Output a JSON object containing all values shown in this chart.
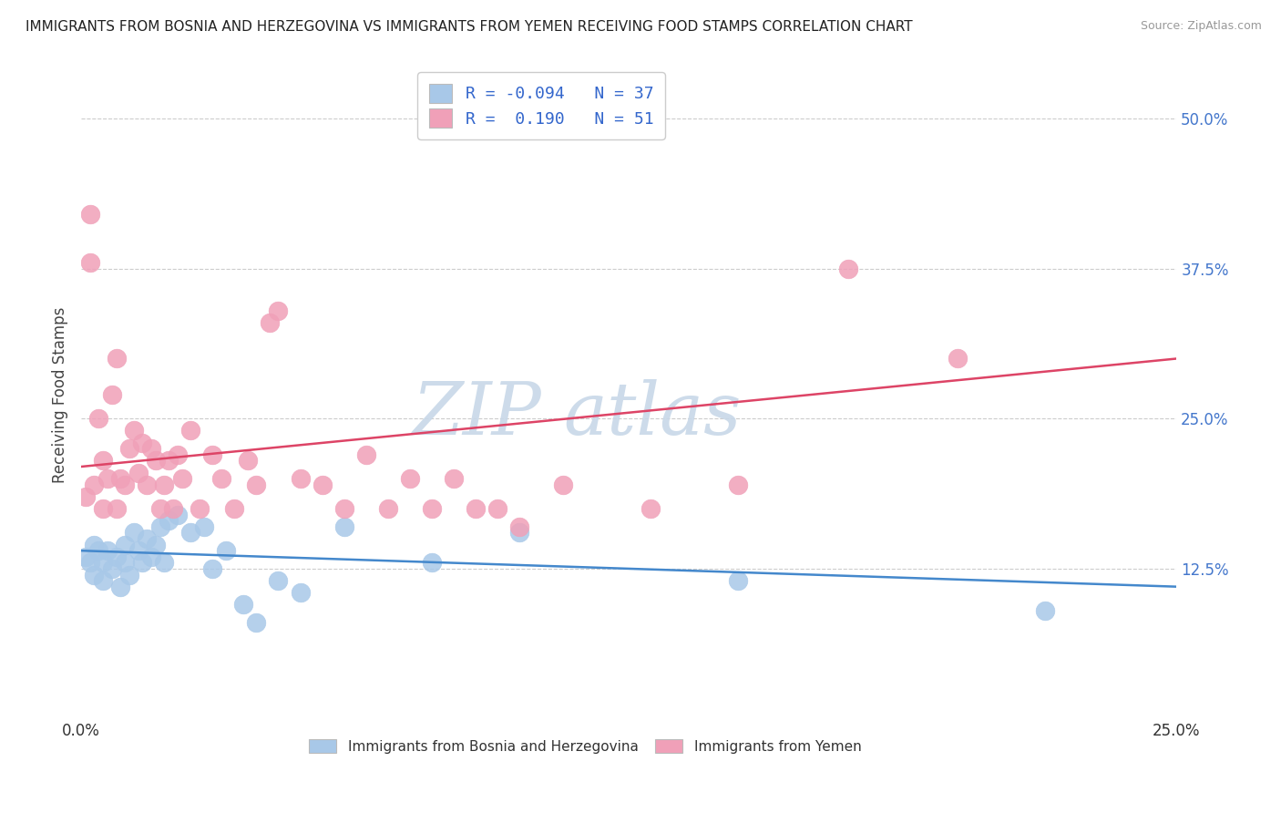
{
  "title": "IMMIGRANTS FROM BOSNIA AND HERZEGOVINA VS IMMIGRANTS FROM YEMEN RECEIVING FOOD STAMPS CORRELATION CHART",
  "source": "Source: ZipAtlas.com",
  "ylabel": "Receiving Food Stamps",
  "xlim": [
    0.0,
    0.25
  ],
  "ylim": [
    0.0,
    0.54
  ],
  "grid_color": "#cccccc",
  "background_color": "#ffffff",
  "blue_color": "#a8c8e8",
  "pink_color": "#f0a0b8",
  "blue_line_color": "#4488cc",
  "pink_line_color": "#dd4466",
  "legend_text_color": "#3366cc",
  "watermark_color": "#c8d8e8",
  "blue_series": {
    "name": "Immigrants from Bosnia and Herzegovina",
    "R": -0.094,
    "N": 37,
    "points_x": [
      0.001,
      0.002,
      0.003,
      0.003,
      0.004,
      0.005,
      0.005,
      0.006,
      0.007,
      0.008,
      0.009,
      0.01,
      0.01,
      0.011,
      0.012,
      0.013,
      0.014,
      0.015,
      0.016,
      0.017,
      0.018,
      0.019,
      0.02,
      0.022,
      0.025,
      0.028,
      0.03,
      0.033,
      0.037,
      0.04,
      0.045,
      0.05,
      0.06,
      0.08,
      0.1,
      0.15,
      0.22
    ],
    "points_y": [
      0.135,
      0.13,
      0.145,
      0.12,
      0.14,
      0.13,
      0.115,
      0.14,
      0.125,
      0.135,
      0.11,
      0.13,
      0.145,
      0.12,
      0.155,
      0.14,
      0.13,
      0.15,
      0.135,
      0.145,
      0.16,
      0.13,
      0.165,
      0.17,
      0.155,
      0.16,
      0.125,
      0.14,
      0.095,
      0.08,
      0.115,
      0.105,
      0.16,
      0.13,
      0.155,
      0.115,
      0.09
    ],
    "line_x": [
      0.0,
      0.25
    ],
    "line_y": [
      0.14,
      0.11
    ]
  },
  "pink_series": {
    "name": "Immigrants from Yemen",
    "R": 0.19,
    "N": 51,
    "points_x": [
      0.001,
      0.002,
      0.002,
      0.003,
      0.004,
      0.005,
      0.005,
      0.006,
      0.007,
      0.008,
      0.008,
      0.009,
      0.01,
      0.011,
      0.012,
      0.013,
      0.014,
      0.015,
      0.016,
      0.017,
      0.018,
      0.019,
      0.02,
      0.021,
      0.022,
      0.023,
      0.025,
      0.027,
      0.03,
      0.032,
      0.035,
      0.038,
      0.04,
      0.043,
      0.045,
      0.05,
      0.055,
      0.06,
      0.065,
      0.07,
      0.075,
      0.08,
      0.085,
      0.09,
      0.095,
      0.1,
      0.11,
      0.13,
      0.15,
      0.175,
      0.2
    ],
    "points_y": [
      0.185,
      0.38,
      0.42,
      0.195,
      0.25,
      0.215,
      0.175,
      0.2,
      0.27,
      0.3,
      0.175,
      0.2,
      0.195,
      0.225,
      0.24,
      0.205,
      0.23,
      0.195,
      0.225,
      0.215,
      0.175,
      0.195,
      0.215,
      0.175,
      0.22,
      0.2,
      0.24,
      0.175,
      0.22,
      0.2,
      0.175,
      0.215,
      0.195,
      0.33,
      0.34,
      0.2,
      0.195,
      0.175,
      0.22,
      0.175,
      0.2,
      0.175,
      0.2,
      0.175,
      0.175,
      0.16,
      0.195,
      0.175,
      0.195,
      0.375,
      0.3
    ],
    "line_x": [
      0.0,
      0.25
    ],
    "line_y": [
      0.21,
      0.3
    ]
  }
}
